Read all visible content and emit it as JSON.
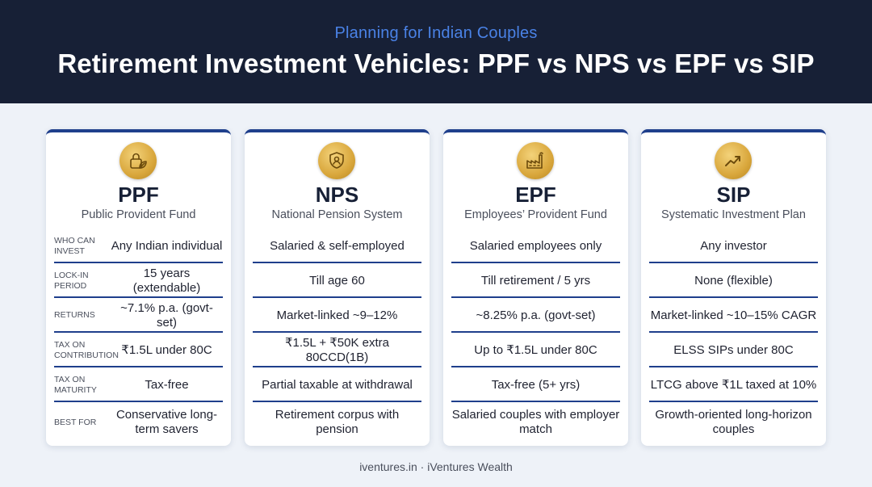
{
  "header": {
    "subtitle": "Planning for Indian Couples",
    "title": "Retirement Investment Vehicles: PPF vs NPS vs EPF vs SIP"
  },
  "row_labels": [
    "WHO CAN INVEST",
    "LOCK-IN PERIOD",
    "RETURNS",
    "TAX ON CONTRIBUTION",
    "TAX ON MATURITY",
    "BEST FOR"
  ],
  "cards": [
    {
      "code": "PPF",
      "fullname": "Public Provident Fund",
      "icon": "lock-leaf-icon",
      "values": [
        "Any Indian individual",
        "15 years (extendable)",
        "~7.1% p.a. (govt-set)",
        "₹1.5L under 80C",
        "Tax-free",
        "Conservative long-term savers"
      ]
    },
    {
      "code": "NPS",
      "fullname": "National Pension System",
      "icon": "shield-person-icon",
      "values": [
        "Salaried & self-employed",
        "Till age 60",
        "Market-linked ~9–12%",
        "₹1.5L + ₹50K extra 80CCD(1B)",
        "Partial taxable at withdrawal",
        "Retirement corpus with pension"
      ]
    },
    {
      "code": "EPF",
      "fullname": "Employees’ Provident Fund",
      "icon": "factory-icon",
      "values": [
        "Salaried employees only",
        "Till retirement / 5 yrs",
        "~8.25% p.a. (govt-set)",
        "Up to ₹1.5L under 80C",
        "Tax-free (5+ yrs)",
        "Salaried couples with employer match"
      ]
    },
    {
      "code": "SIP",
      "fullname": "Systematic Investment Plan",
      "icon": "trend-up-arrow-icon",
      "values": [
        "Any investor",
        "None (flexible)",
        "Market-linked ~10–15% CAGR",
        "ELSS SIPs under 80C",
        "LTCG above ₹1L taxed at 10%",
        "Growth-oriented long-horizon couples"
      ]
    }
  ],
  "footer": "iventures.in · iVentures Wealth"
}
